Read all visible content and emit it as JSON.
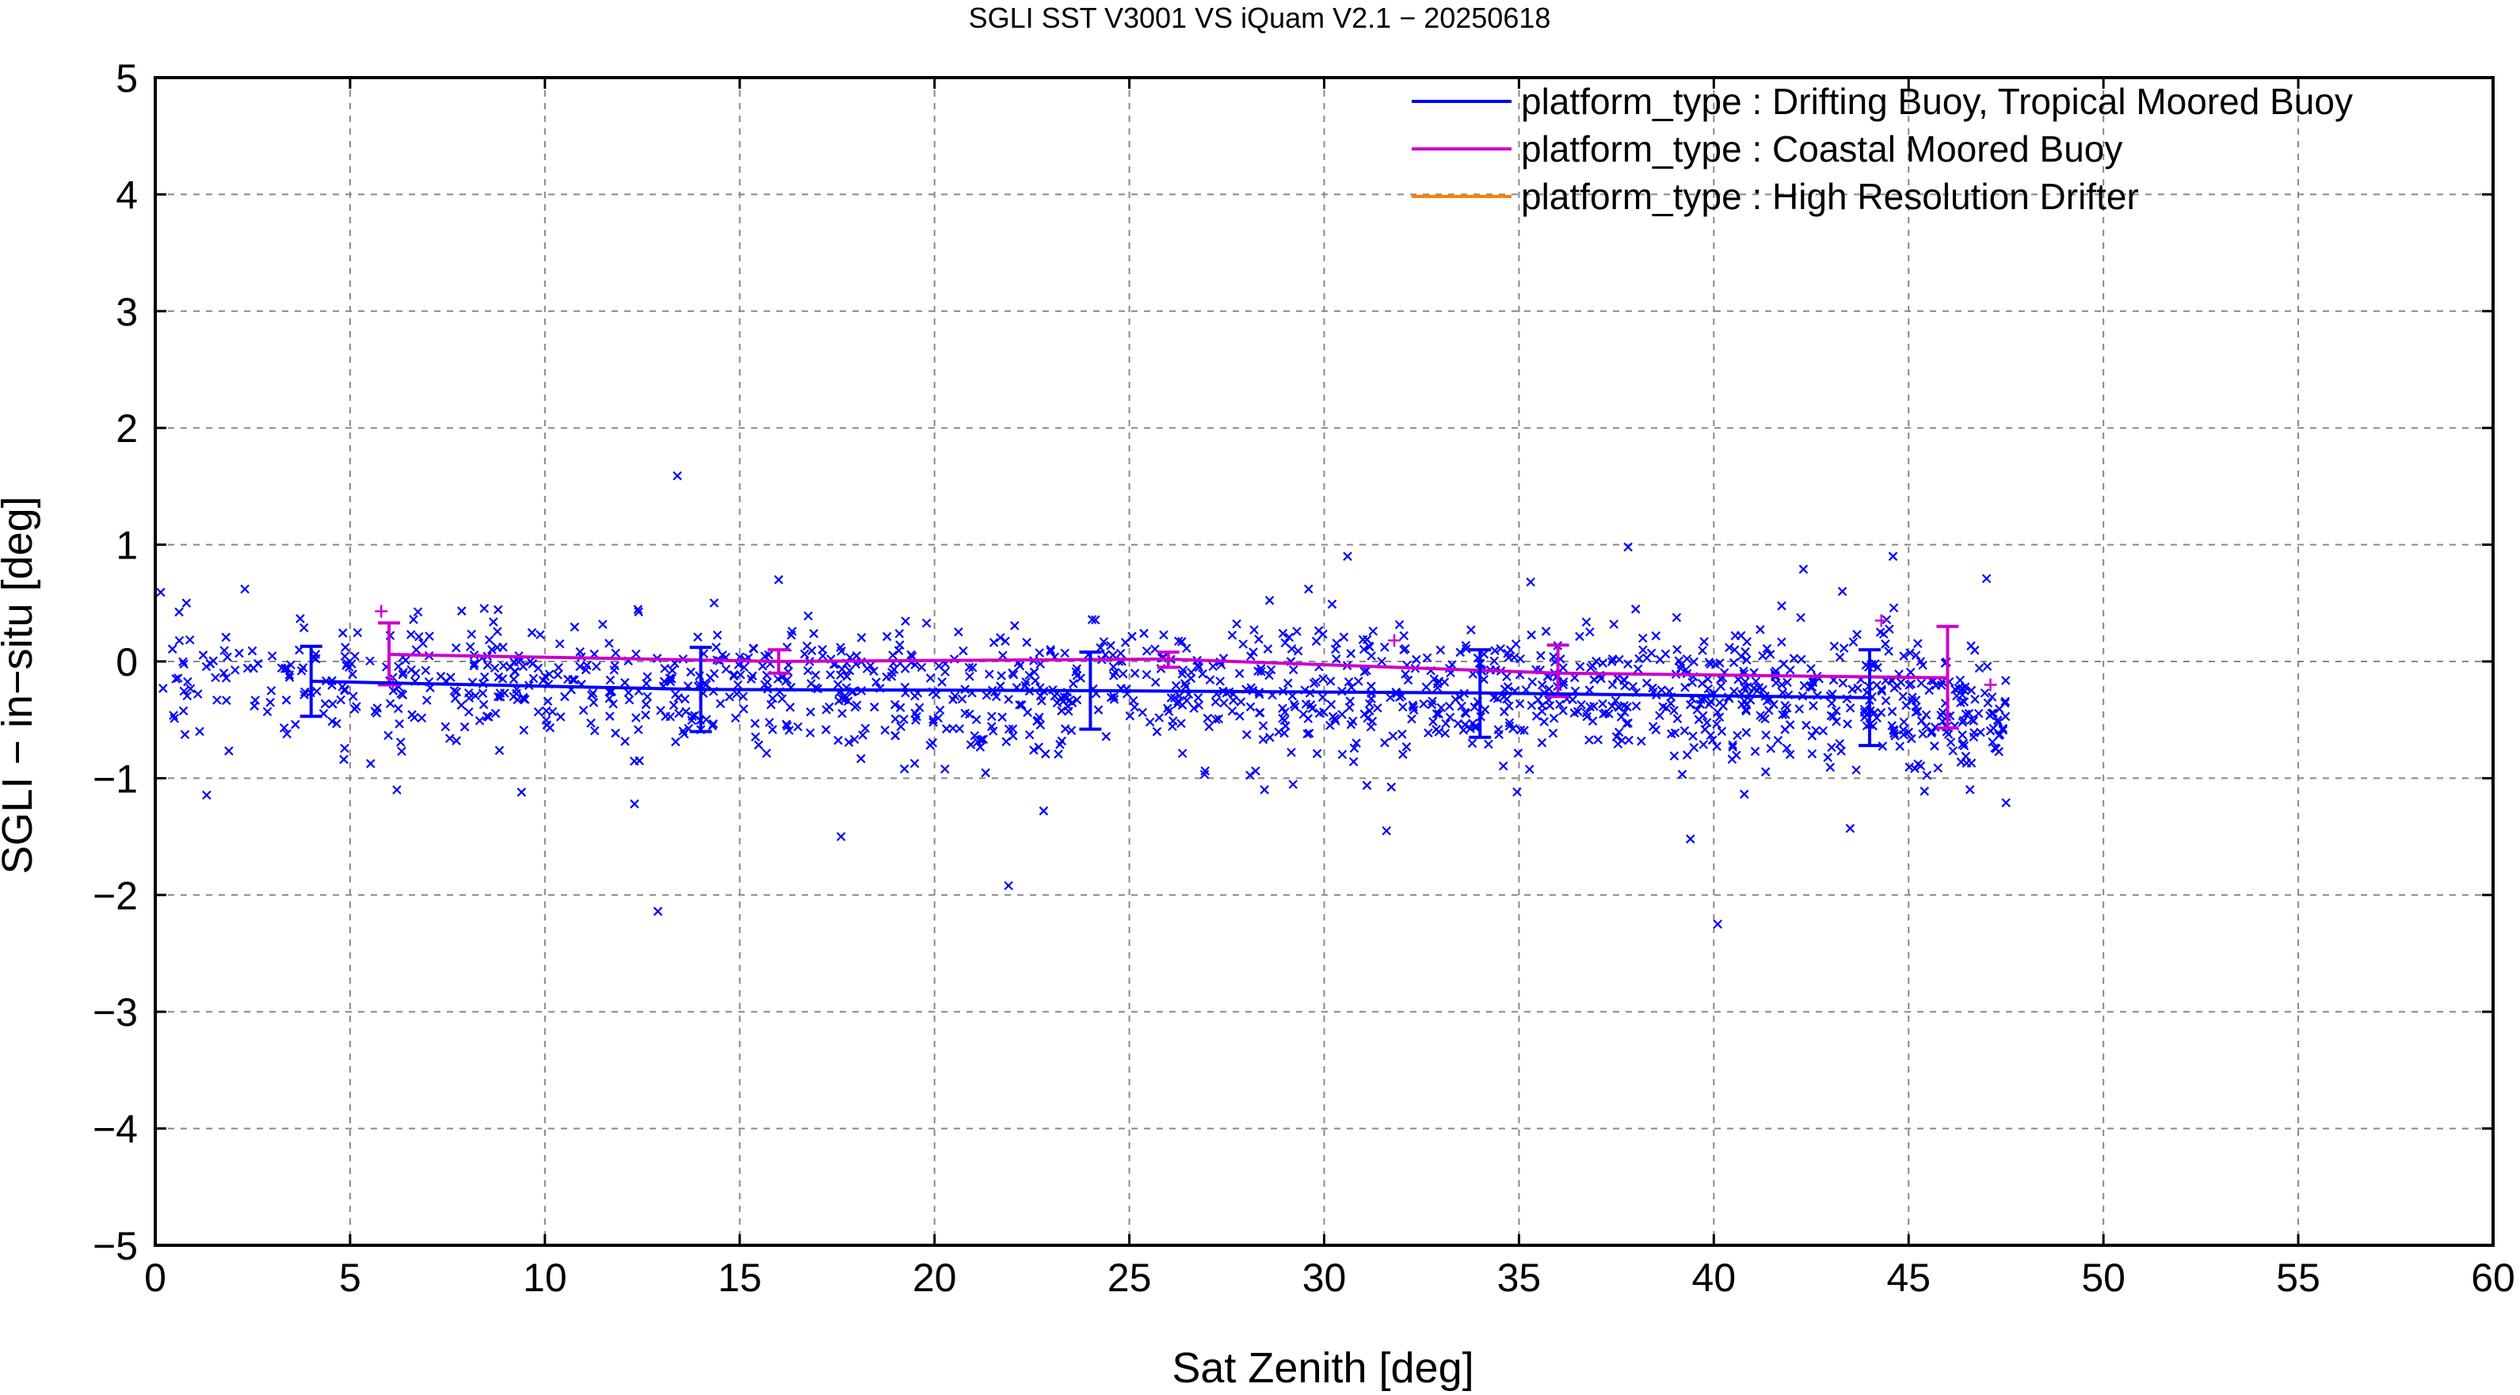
{
  "chart_data": {
    "type": "scatter",
    "title": "SGLI SST V3001 VS iQuam V2.1  − 20250618",
    "xlabel": "Sat Zenith [deg]",
    "ylabel": "SGLI − in−situ [deg]",
    "xlim": [
      0,
      60
    ],
    "ylim": [
      -5,
      5
    ],
    "x_ticks": [
      0,
      5,
      10,
      15,
      20,
      25,
      30,
      35,
      40,
      45,
      50,
      55,
      60
    ],
    "y_ticks": [
      -5,
      -4,
      -3,
      -2,
      -1,
      0,
      1,
      2,
      3,
      4,
      5
    ],
    "x_tick_labels": [
      "0",
      "5",
      "10",
      "15",
      "20",
      "25",
      "30",
      "35",
      "40",
      "45",
      "50",
      "55",
      "60"
    ],
    "y_tick_labels": [
      "−5",
      "−4",
      "−3",
      "−2",
      "−1",
      "0",
      "1",
      "2",
      "3",
      "4",
      "5"
    ],
    "grid": true,
    "legend_position": "top-right",
    "series": [
      {
        "name": "platform_type : Drifting Buoy, Tropical Moored Buoy",
        "color": "#0000ff",
        "marker": "x",
        "line_x": [
          4,
          14,
          24,
          34,
          44
        ],
        "line_y": [
          -0.17,
          -0.24,
          -0.25,
          -0.27,
          -0.31
        ],
        "error_low": [
          -0.47,
          -0.6,
          -0.58,
          -0.65,
          -0.72
        ],
        "error_high": [
          0.13,
          0.12,
          0.08,
          0.1,
          0.1
        ],
        "outliers": [
          {
            "x": 13.4,
            "y": 1.59
          },
          {
            "x": 12.9,
            "y": -2.14
          },
          {
            "x": 40.1,
            "y": -2.25
          },
          {
            "x": 21.9,
            "y": -1.92
          },
          {
            "x": 17.6,
            "y": -1.5
          },
          {
            "x": 30.6,
            "y": 0.9
          },
          {
            "x": 37.8,
            "y": 0.98
          },
          {
            "x": 44.6,
            "y": 0.9
          },
          {
            "x": 2.3,
            "y": 0.62
          },
          {
            "x": 16,
            "y": 0.7
          },
          {
            "x": 47,
            "y": 0.71
          },
          {
            "x": 43.3,
            "y": 0.6
          },
          {
            "x": 12.3,
            "y": -1.22
          },
          {
            "x": 31.6,
            "y": -1.45
          },
          {
            "x": 47.5,
            "y": -1.21
          },
          {
            "x": 43.5,
            "y": -1.43
          },
          {
            "x": 39.4,
            "y": -1.52
          },
          {
            "x": 9.4,
            "y": -1.12
          },
          {
            "x": 6.2,
            "y": -1.1
          },
          {
            "x": 22.8,
            "y": -1.28
          },
          {
            "x": 42.3,
            "y": 0.79
          },
          {
            "x": 0.8,
            "y": 0.5
          },
          {
            "x": 29.6,
            "y": 0.62
          },
          {
            "x": 35.3,
            "y": 0.68
          }
        ],
        "scatter_note": "dense cloud of about 1400 points spread from x 0 to 47.5, mostly between y -1 and 0.5"
      },
      {
        "name": "platform_type : Coastal Moored Buoy",
        "color": "#cc00cc",
        "marker": "+",
        "line_x": [
          6,
          16,
          26,
          36,
          46
        ],
        "line_y": [
          0.06,
          0.0,
          0.02,
          -0.1,
          -0.14
        ],
        "error_low": [
          -0.2,
          -0.1,
          -0.05,
          -0.3,
          -0.57
        ],
        "error_high": [
          0.33,
          0.1,
          0.08,
          0.14,
          0.3
        ],
        "points": [
          {
            "x": 5.8,
            "y": 0.43
          },
          {
            "x": 6.1,
            "y": -0.18
          },
          {
            "x": 31.8,
            "y": 0.18
          },
          {
            "x": 44.3,
            "y": 0.35
          },
          {
            "x": 47.1,
            "y": -0.2
          }
        ]
      },
      {
        "name": "platform_type : High Resolution Drifter",
        "color": "#ff8000",
        "marker": "x"
      }
    ]
  }
}
